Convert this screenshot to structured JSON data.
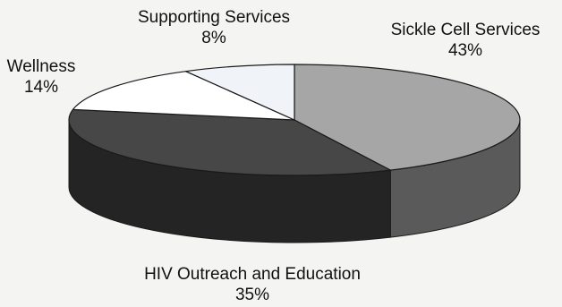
{
  "chart_data": {
    "type": "pie",
    "style": "3d",
    "title": "",
    "categories": [
      "Sickle Cell Services",
      "HIV Outreach and Education",
      "Wellness",
      "Supporting Services"
    ],
    "values": [
      43,
      35,
      14,
      8
    ],
    "value_labels": [
      "43%",
      "35%",
      "14%",
      "8%"
    ],
    "unit": "%",
    "legend": "none"
  },
  "colors": {
    "background": "#f4f4f2",
    "sickle_top": "#a6a6a6",
    "sickle_side": "#5a5a5a",
    "hiv_top": "#474747",
    "hiv_side": "#242424",
    "wellness_top": "#ffffff",
    "supporting_top": "#f0f3f8",
    "edge": "#1a1a1a"
  }
}
